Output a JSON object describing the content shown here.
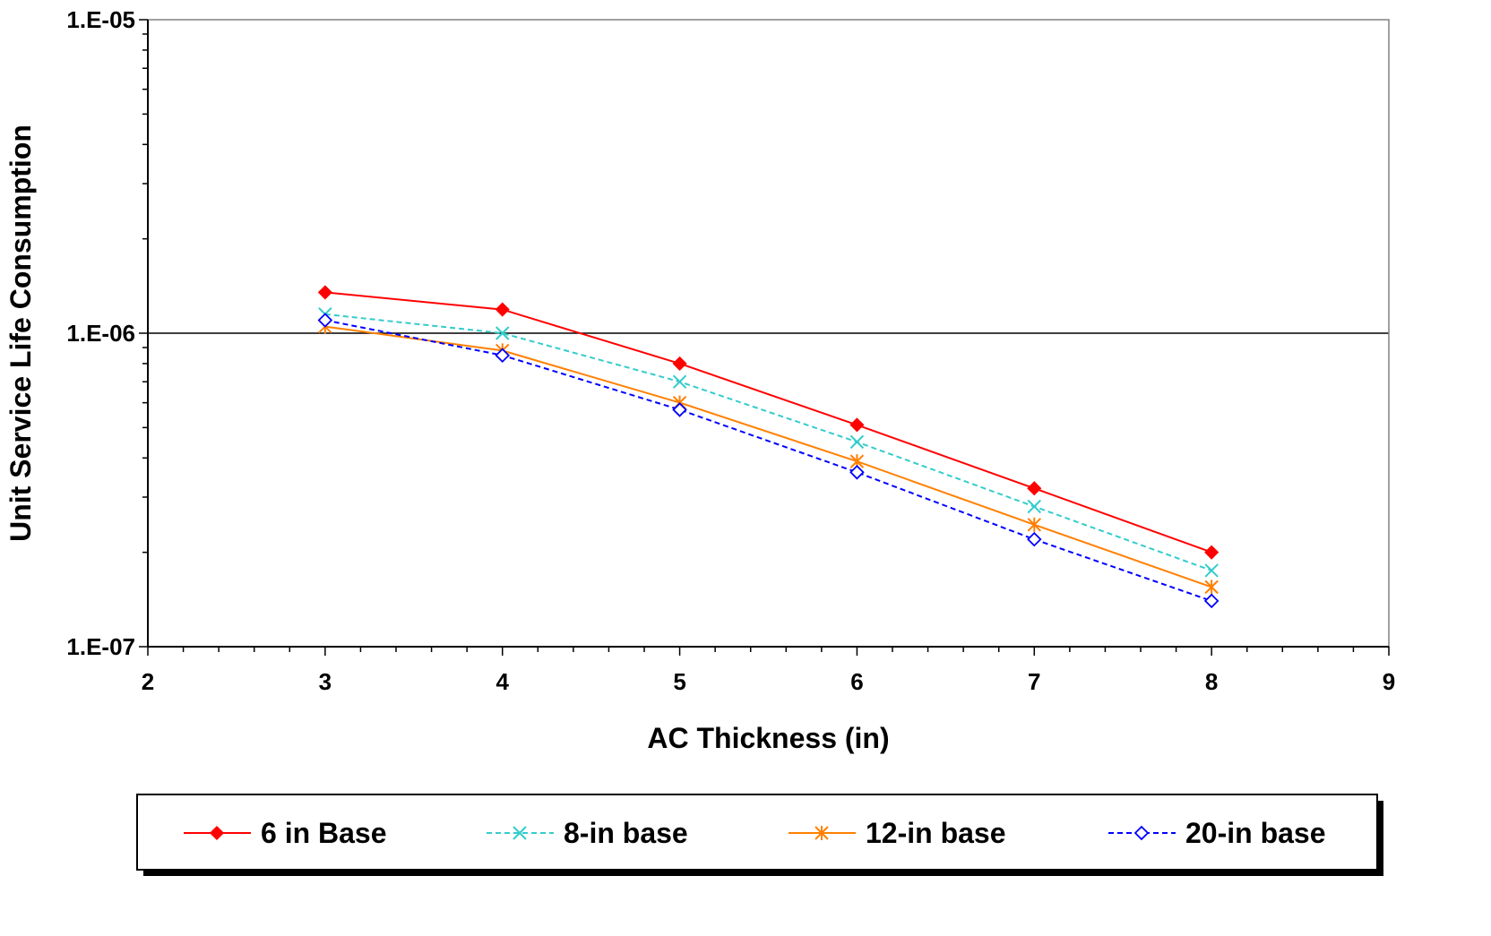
{
  "chart_data": {
    "type": "line",
    "title": "",
    "xlabel": "AC Thickness (in)",
    "ylabel": "Unit Service Life Consumption",
    "xlim": [
      2,
      9
    ],
    "ylim": [
      1e-07,
      1e-05
    ],
    "yscale": "log",
    "x_ticks": [
      2,
      3,
      4,
      5,
      6,
      7,
      8,
      9
    ],
    "x_tick_labels": [
      "2",
      "3",
      "4",
      "5",
      "6",
      "7",
      "8",
      "9"
    ],
    "y_ticks": [
      1e-07,
      1e-06,
      1e-05
    ],
    "y_tick_labels": [
      "1.E-07",
      "1.E-06",
      "1.E-05"
    ],
    "grid": "major y only",
    "legend_position": "bottom",
    "x": [
      3,
      4,
      5,
      6,
      7,
      8
    ],
    "series": [
      {
        "name": "6 in Base",
        "color": "#ff0000",
        "line": "solid",
        "marker": "filled-diamond",
        "values": [
          1.35e-06,
          1.19e-06,
          8e-07,
          5.1e-07,
          3.2e-07,
          2e-07
        ]
      },
      {
        "name": "8-in base",
        "color": "#33cccc",
        "line": "dashed",
        "marker": "x",
        "values": [
          1.15e-06,
          1e-06,
          7e-07,
          4.5e-07,
          2.8e-07,
          1.75e-07
        ]
      },
      {
        "name": "12-in base",
        "color": "#ff8000",
        "line": "solid",
        "marker": "star",
        "values": [
          1.05e-06,
          8.8e-07,
          6e-07,
          3.9e-07,
          2.45e-07,
          1.55e-07
        ]
      },
      {
        "name": "20-in base",
        "color": "#0000ff",
        "line": "dashed",
        "marker": "open-diamond",
        "values": [
          1.1e-06,
          8.5e-07,
          5.7e-07,
          3.6e-07,
          2.2e-07,
          1.4e-07
        ]
      }
    ]
  }
}
